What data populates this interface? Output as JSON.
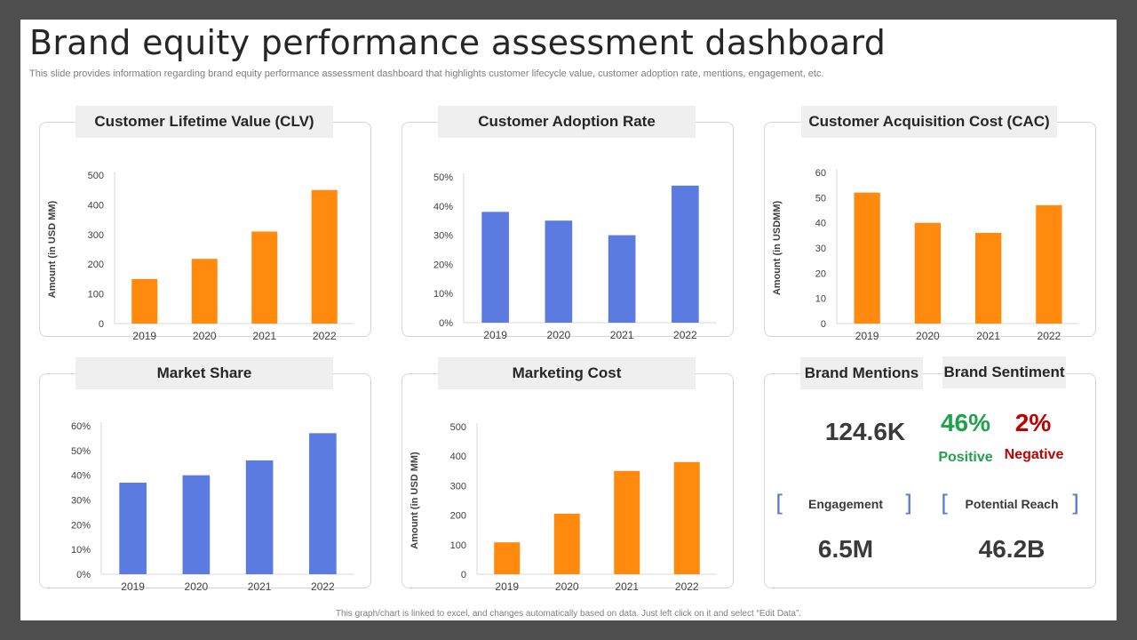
{
  "title": "Brand equity performance assessment dashboard",
  "subtitle": "This slide provides information regarding brand equity performance assessment dashboard that highlights customer lifecycle value, customer adoption rate, mentions, engagement, etc.",
  "footer": "This graph/chart is linked to excel, and changes automatically based on data. Just left click on it and select “Edit Data”.",
  "colors": {
    "orange": "#ff8a0d",
    "blue": "#5b7be0",
    "positive": "#1ea34a",
    "negative": "#c00000"
  },
  "chart_data": [
    {
      "id": "clv",
      "type": "bar",
      "title": "Customer Lifetime Value (CLV)",
      "xlabel": "",
      "ylabel": "Amount (in USD MM)",
      "categories": [
        "2019",
        "2020",
        "2021",
        "2022"
      ],
      "values": [
        150,
        218,
        310,
        450
      ],
      "ylim": [
        0,
        500
      ],
      "yticks": [
        "0",
        "100",
        "200",
        "300",
        "400",
        "500"
      ],
      "color": "orange"
    },
    {
      "id": "adoption",
      "type": "bar",
      "title": "Customer Adoption Rate",
      "xlabel": "",
      "ylabel": "",
      "categories": [
        "2019",
        "2020",
        "2021",
        "2022"
      ],
      "values": [
        38,
        35,
        30,
        47
      ],
      "ylim": [
        0,
        50
      ],
      "yticks": [
        "0%",
        "10%",
        "20%",
        "30%",
        "40%",
        "50%"
      ],
      "color": "blue"
    },
    {
      "id": "cac",
      "type": "bar",
      "title": "Customer Acquisition Cost (CAC)",
      "xlabel": "",
      "ylabel": "Amount (in USDMM)",
      "categories": [
        "2019",
        "2020",
        "2021",
        "2022"
      ],
      "values": [
        52,
        40,
        36,
        47
      ],
      "ylim": [
        0,
        60
      ],
      "yticks": [
        "0",
        "10",
        "20",
        "30",
        "40",
        "50",
        "60"
      ],
      "color": "orange"
    },
    {
      "id": "market",
      "type": "bar",
      "title": "Market Share",
      "xlabel": "",
      "ylabel": "",
      "categories": [
        "2019",
        "2020",
        "2021",
        "2022"
      ],
      "values": [
        37,
        40,
        46,
        57
      ],
      "ylim": [
        0,
        60
      ],
      "yticks": [
        "0%",
        "10%",
        "20%",
        "30%",
        "40%",
        "50%",
        "60%"
      ],
      "color": "blue"
    },
    {
      "id": "marketing",
      "type": "bar",
      "title": "Marketing Cost",
      "xlabel": "",
      "ylabel": "Amount (in USD MM)",
      "categories": [
        "2019",
        "2020",
        "2021",
        "2022"
      ],
      "values": [
        108,
        205,
        350,
        380
      ],
      "ylim": [
        0,
        500
      ],
      "yticks": [
        "0",
        "100",
        "200",
        "300",
        "400",
        "500"
      ],
      "color": "orange"
    }
  ],
  "kpis": {
    "brand_mentions": {
      "label": "Brand Mentions",
      "value": "124.6K"
    },
    "brand_sentiment": {
      "label": "Brand Sentiment",
      "positive_value": "46%",
      "positive_label": "Positive",
      "negative_value": "2%",
      "negative_label": "Negative"
    },
    "engagement": {
      "label": "Engagement",
      "value": "6.5M"
    },
    "potential_reach": {
      "label": "Potential Reach",
      "value": "46.2B"
    }
  }
}
